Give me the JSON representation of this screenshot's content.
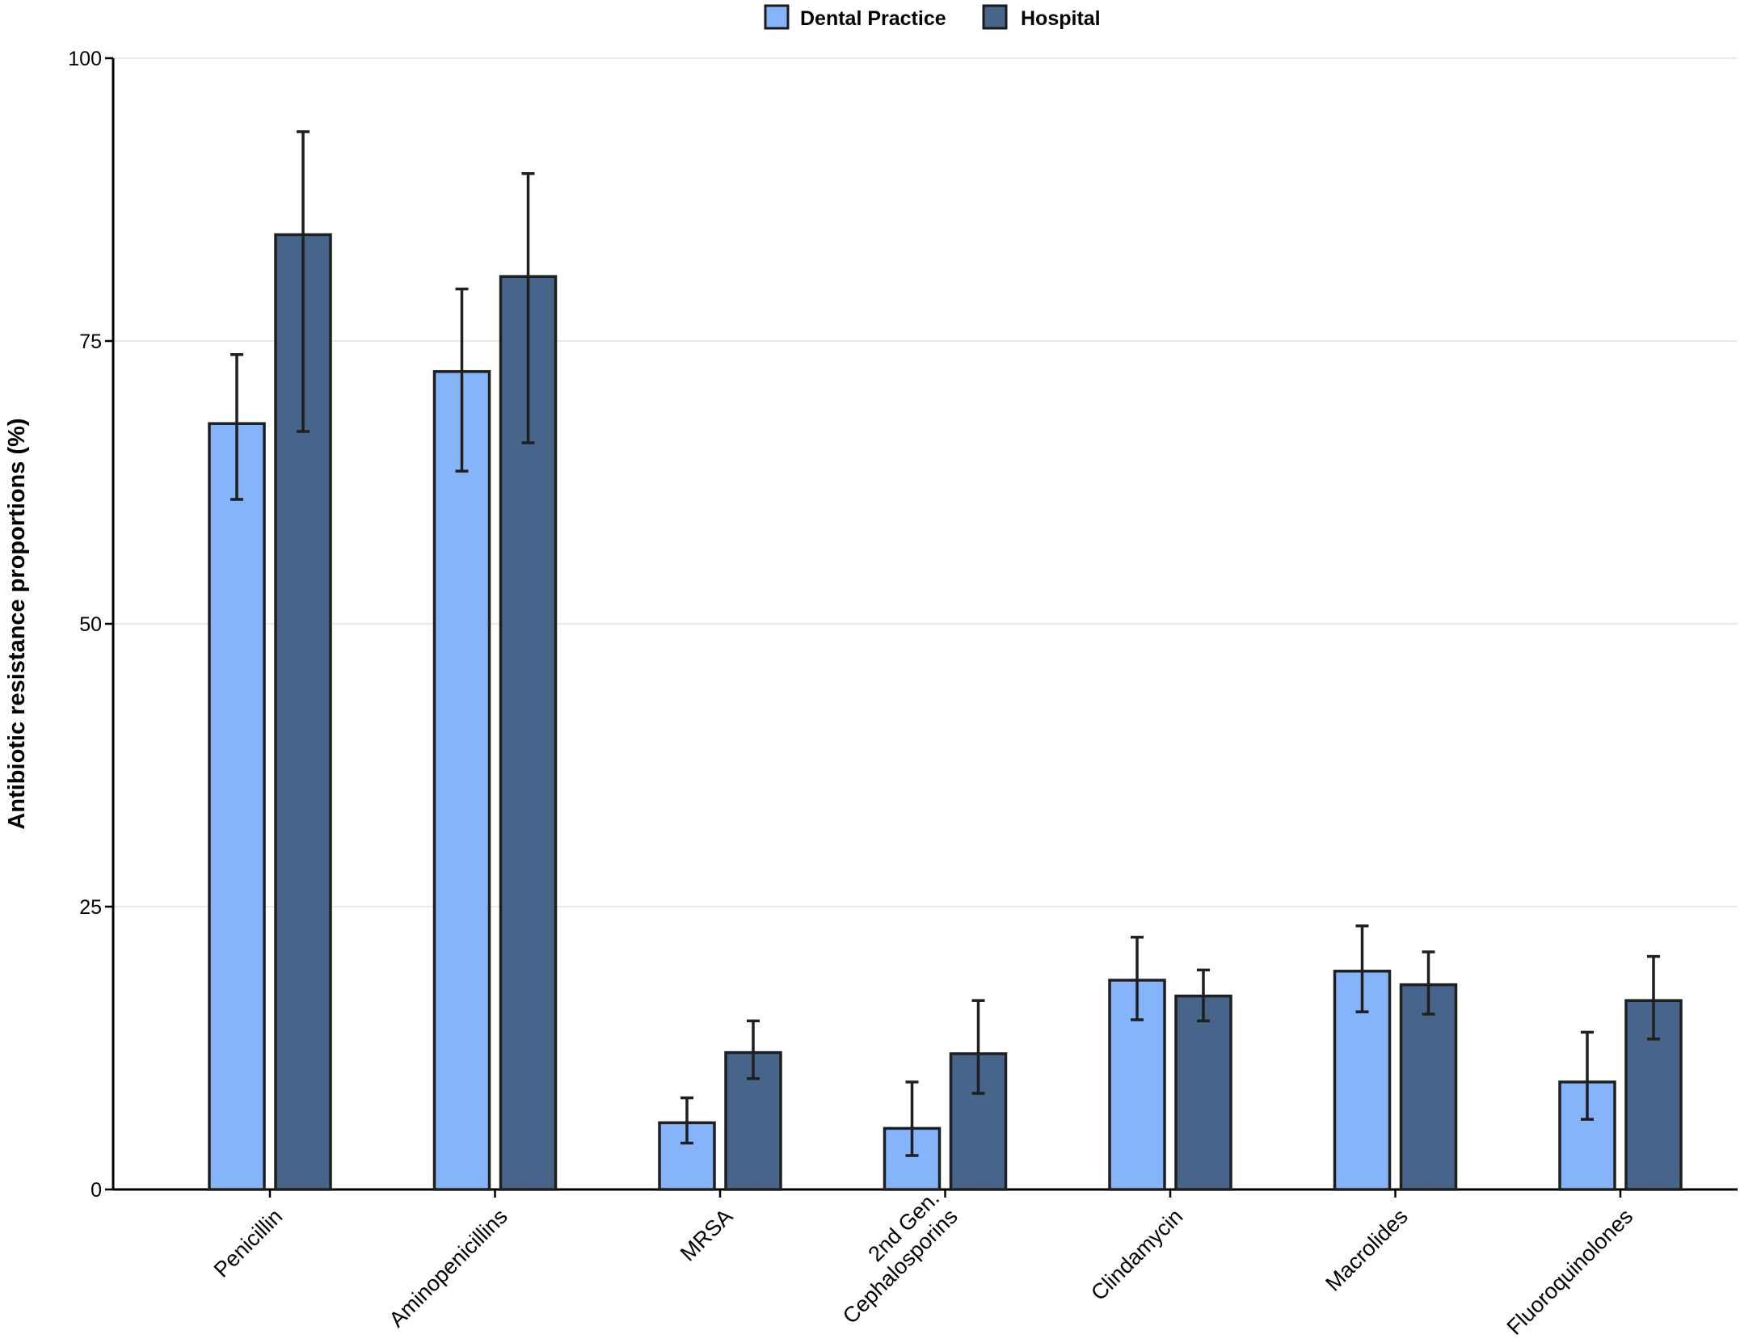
{
  "chart_data": {
    "type": "bar",
    "title": "",
    "xlabel": "",
    "ylabel": "Antibiotic resistance proportions (%)",
    "ylim": [
      0,
      100
    ],
    "yticks": [
      0,
      25,
      50,
      75,
      100
    ],
    "grid": true,
    "legend_position": "top-center",
    "categories": [
      "Penicillin",
      "Aminopenicillins",
      "MRSA",
      "2nd Gen.\nCephalosporins",
      "Clindamycin",
      "Macrolides",
      "Fluoroquinolones"
    ],
    "series": [
      {
        "name": "Dental Practice",
        "color": "#85b4fb",
        "values": [
          67.7,
          72.3,
          5.9,
          5.4,
          18.5,
          19.3,
          9.5
        ],
        "error_low": [
          61.0,
          63.5,
          4.1,
          3.0,
          15.0,
          15.7,
          6.2
        ],
        "error_high": [
          73.8,
          79.6,
          8.1,
          9.5,
          22.3,
          23.3,
          13.9
        ]
      },
      {
        "name": "Hospital",
        "color": "#47648b",
        "values": [
          84.4,
          80.7,
          12.1,
          12.0,
          17.1,
          18.1,
          16.7
        ],
        "error_low": [
          67.0,
          66.0,
          9.8,
          8.5,
          14.9,
          15.5,
          13.3
        ],
        "error_high": [
          93.5,
          89.8,
          14.9,
          16.7,
          19.4,
          21.0,
          20.6
        ]
      }
    ]
  }
}
